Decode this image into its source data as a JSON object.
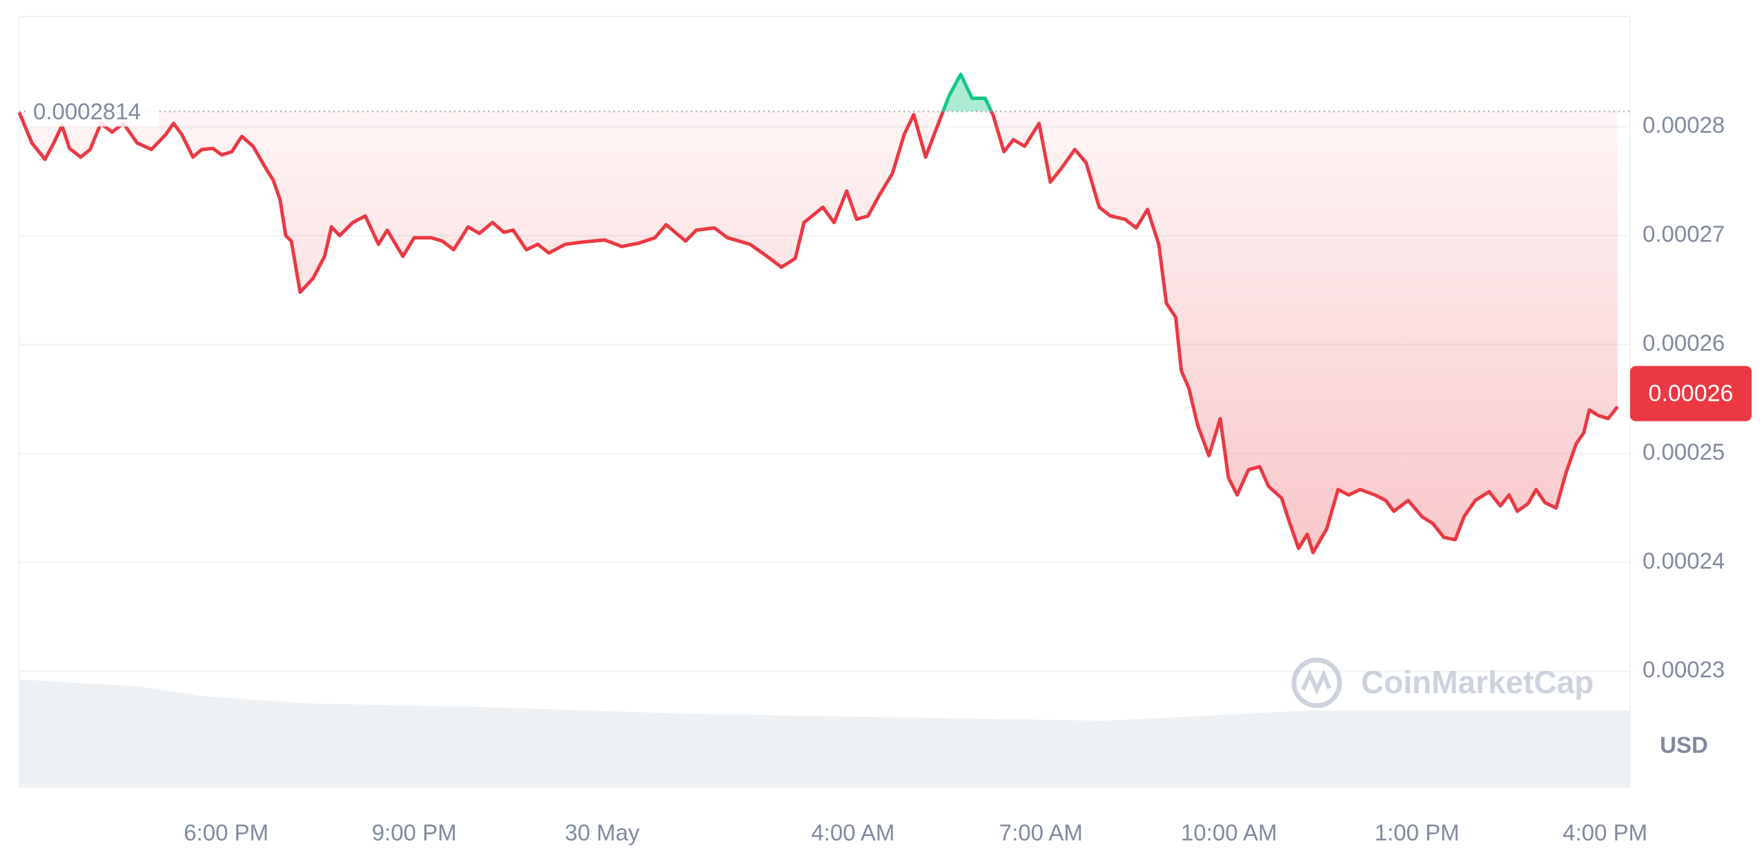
{
  "chart_data": {
    "type": "line",
    "x": [
      14.7,
      14.9,
      15.11,
      15.25,
      15.38,
      15.5,
      15.68,
      15.83,
      16.0,
      16.18,
      16.36,
      16.58,
      16.81,
      17.04,
      17.16,
      17.29,
      17.47,
      17.61,
      17.79,
      17.93,
      18.09,
      18.25,
      18.43,
      18.63,
      18.75,
      18.86,
      18.95,
      19.04,
      19.18,
      19.39,
      19.57,
      19.68,
      19.81,
      20.02,
      20.22,
      20.43,
      20.57,
      20.82,
      21.0,
      21.27,
      21.45,
      21.63,
      21.86,
      22.04,
      22.25,
      22.43,
      22.58,
      22.79,
      22.97,
      23.15,
      23.41,
      23.68,
      24.04,
      24.31,
      24.58,
      24.84,
      25.02,
      25.33,
      25.5,
      25.79,
      26.0,
      26.36,
      26.63,
      26.86,
      27.08,
      27.22,
      27.52,
      27.7,
      27.9,
      28.06,
      28.24,
      28.41,
      28.63,
      28.82,
      28.97,
      29.16,
      29.33,
      29.54,
      29.72,
      29.9,
      30.11,
      30.24,
      30.41,
      30.56,
      30.74,
      30.97,
      31.15,
      31.33,
      31.54,
      31.72,
      31.93,
      32.11,
      32.34,
      32.52,
      32.7,
      32.88,
      33.0,
      33.15,
      33.24,
      33.36,
      33.5,
      33.68,
      33.86,
      33.99,
      34.13,
      34.31,
      34.49,
      34.63,
      34.84,
      34.97,
      35.11,
      35.25,
      35.34,
      35.56,
      35.74,
      35.91,
      36.09,
      36.33,
      36.5,
      36.63,
      36.86,
      37.08,
      37.25,
      37.43,
      37.61,
      37.75,
      37.93,
      38.15,
      38.33,
      38.47,
      38.6,
      38.77,
      38.9,
      39.04,
      39.22,
      39.38,
      39.54,
      39.66,
      39.75,
      39.89,
      40.05,
      40.2
    ],
    "values": [
      0.0002813,
      0.0002785,
      0.000277,
      0.0002785,
      0.0002801,
      0.000278,
      0.0002772,
      0.0002779,
      0.0002803,
      0.0002795,
      0.0002803,
      0.0002785,
      0.0002779,
      0.0002793,
      0.0002803,
      0.0002793,
      0.0002772,
      0.0002779,
      0.000278,
      0.0002774,
      0.0002777,
      0.0002791,
      0.0002782,
      0.0002762,
      0.0002751,
      0.0002733,
      0.00027,
      0.0002695,
      0.0002648,
      0.0002661,
      0.0002681,
      0.0002708,
      0.00027,
      0.0002712,
      0.0002718,
      0.0002692,
      0.0002705,
      0.0002681,
      0.0002698,
      0.0002698,
      0.0002695,
      0.0002687,
      0.0002708,
      0.0002702,
      0.0002712,
      0.0002703,
      0.0002705,
      0.0002687,
      0.0002692,
      0.0002684,
      0.0002692,
      0.0002694,
      0.0002696,
      0.000269,
      0.0002693,
      0.0002698,
      0.000271,
      0.0002695,
      0.0002705,
      0.0002707,
      0.0002698,
      0.0002692,
      0.0002681,
      0.0002671,
      0.0002679,
      0.0002712,
      0.0002726,
      0.0002712,
      0.0002741,
      0.0002715,
      0.0002718,
      0.0002736,
      0.0002757,
      0.0002793,
      0.0002811,
      0.0002772,
      0.0002798,
      0.0002829,
      0.0002848,
      0.0002826,
      0.0002826,
      0.000281,
      0.0002777,
      0.0002788,
      0.0002782,
      0.0002803,
      0.0002749,
      0.0002762,
      0.0002779,
      0.0002767,
      0.0002726,
      0.0002718,
      0.0002715,
      0.0002707,
      0.0002724,
      0.0002692,
      0.0002638,
      0.0002625,
      0.0002576,
      0.000256,
      0.0002526,
      0.0002498,
      0.0002532,
      0.0002478,
      0.0002462,
      0.0002485,
      0.0002488,
      0.000247,
      0.0002459,
      0.0002436,
      0.0002413,
      0.0002426,
      0.0002409,
      0.0002431,
      0.0002467,
      0.0002462,
      0.0002467,
      0.0002462,
      0.0002457,
      0.0002447,
      0.0002457,
      0.0002442,
      0.0002436,
      0.0002423,
      0.0002421,
      0.0002442,
      0.0002457,
      0.0002465,
      0.0002452,
      0.0002462,
      0.0002447,
      0.0002454,
      0.0002467,
      0.0002455,
      0.000245,
      0.0002483,
      0.0002509,
      0.0002519,
      0.000254,
      0.0002535,
      0.0002532,
      0.0002543
    ],
    "baseline": 0.0002814,
    "current_price": {
      "value": 0.0002555,
      "label": "0.00026"
    },
    "up_color": "#16c784",
    "down_color": "#ea3943",
    "xlim": [
      14.7,
      40.4
    ],
    "xticks": [
      {
        "value": 18,
        "label": "6:00 PM"
      },
      {
        "value": 21,
        "label": "9:00 PM"
      },
      {
        "value": 24,
        "label": "30 May"
      },
      {
        "value": 28,
        "label": "4:00 AM"
      },
      {
        "value": 31,
        "label": "7:00 AM"
      },
      {
        "value": 34,
        "label": "10:00 AM"
      },
      {
        "value": 37,
        "label": "1:00 PM"
      },
      {
        "value": 40,
        "label": "4:00 PM"
      }
    ],
    "ylim": [
      0.0002194,
      0.0002901
    ],
    "yticks": [
      0.00023,
      0.00024,
      0.00025,
      0.00026,
      0.00027,
      0.00028
    ],
    "grid": true,
    "currency_label": "USD",
    "watermark": "CoinMarketCap"
  }
}
